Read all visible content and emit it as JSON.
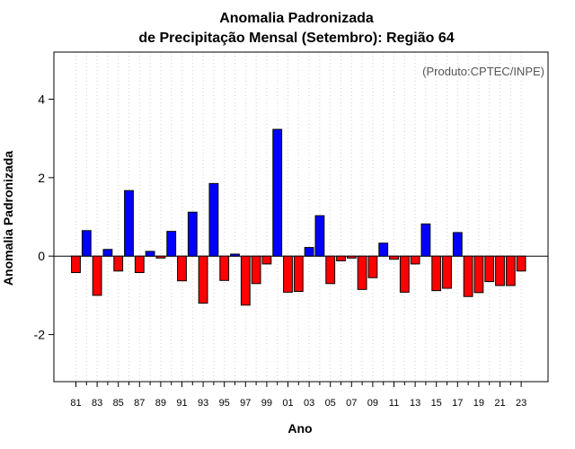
{
  "chart_data": {
    "type": "bar",
    "title": "Anomalia Padronizada",
    "subtitle": "de Precipitação Mensal (Setembro): Região 64",
    "xlabel": "Ano",
    "ylabel": "Anomalia Padronizada",
    "annotation": "(Produto:CPTEC/INPE)",
    "ylim": [
      -3.2,
      5.2
    ],
    "yticks": [
      -2,
      0,
      2,
      4
    ],
    "ytick_labels": [
      "-2",
      "0",
      "2",
      "4"
    ],
    "categories": [
      "1981",
      "1982",
      "1983",
      "1984",
      "1985",
      "1986",
      "1987",
      "1988",
      "1989",
      "1990",
      "1991",
      "1992",
      "1993",
      "1994",
      "1995",
      "1996",
      "1997",
      "1998",
      "1999",
      "2000",
      "2001",
      "2002",
      "2003",
      "2004",
      "2005",
      "2006",
      "2007",
      "2008",
      "2009",
      "2010",
      "2011",
      "2012",
      "2013",
      "2014",
      "2015",
      "2016",
      "2017",
      "2018",
      "2019",
      "2020",
      "2021",
      "2022",
      "2023"
    ],
    "xtick_labels": [
      "81",
      "83",
      "85",
      "87",
      "89",
      "91",
      "93",
      "95",
      "97",
      "99",
      "01",
      "03",
      "05",
      "07",
      "09",
      "11",
      "13",
      "15",
      "17",
      "19",
      "21",
      "23"
    ],
    "values": [
      -0.42,
      0.65,
      -1.0,
      0.17,
      -0.38,
      1.67,
      -0.42,
      0.12,
      -0.05,
      0.63,
      -0.63,
      1.12,
      -1.2,
      1.85,
      -0.62,
      0.05,
      -1.25,
      -0.7,
      -0.2,
      3.23,
      -0.92,
      -0.9,
      0.22,
      1.03,
      -0.7,
      -0.12,
      -0.05,
      -0.85,
      -0.55,
      0.33,
      -0.08,
      -0.92,
      -0.2,
      0.82,
      -0.88,
      -0.82,
      0.6,
      -1.03,
      -0.93,
      -0.65,
      -0.75,
      -0.75,
      -0.38
    ],
    "positive_color": "#0000ff",
    "negative_color": "#ff0000",
    "grid": true,
    "grid_color": "#d3d3d3",
    "zero_line": true
  }
}
